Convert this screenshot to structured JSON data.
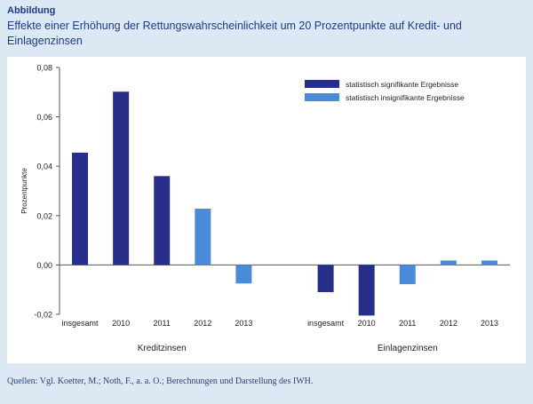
{
  "header": {
    "label": "Abbildung",
    "title": "Effekte einer Erhöhung der Rettungswahrscheinlichkeit um 20 Prozentpunkte auf Kredit- und Einlagenzinsen"
  },
  "source": "Quellen: Vgl. Koetter, M.; Noth, F., a. a. O.; Berechnungen und Darstellung des IWH.",
  "colors": {
    "significant": "#262e8a",
    "insignificant": "#4a8ad8",
    "background": "#dce9f5",
    "title": "#1b3a8c"
  },
  "chart_data": {
    "type": "bar",
    "ylabel": "Prozentpunkte",
    "ylim": [
      -0.02,
      0.08
    ],
    "yticks": [
      "-0,02",
      "0,00",
      "0,02",
      "0,04",
      "0,06",
      "0,08"
    ],
    "ytick_values": [
      -0.02,
      0,
      0.02,
      0.04,
      0.06,
      0.08
    ],
    "legend": [
      {
        "key": "significant",
        "label": "statistisch signifikante Ergebnisse"
      },
      {
        "key": "insignificant",
        "label": "statistisch insignifikante Ergebnisse"
      }
    ],
    "legend_position": "top-right",
    "groups": [
      {
        "name": "Kreditzinsen",
        "categories": [
          "insgesamt",
          "2010",
          "2011",
          "2012",
          "2013"
        ],
        "values": [
          0.0455,
          0.0702,
          0.036,
          0.0228,
          -0.0075
        ],
        "significance": [
          "significant",
          "significant",
          "significant",
          "insignificant",
          "insignificant"
        ]
      },
      {
        "name": "Einlagenzinsen",
        "categories": [
          "insgesamt",
          "2010",
          "2011",
          "2012",
          "2013"
        ],
        "values": [
          -0.011,
          -0.0205,
          -0.0078,
          0.0018,
          0.0018
        ],
        "significance": [
          "significant",
          "significant",
          "insignificant",
          "insignificant",
          "insignificant"
        ]
      }
    ]
  }
}
